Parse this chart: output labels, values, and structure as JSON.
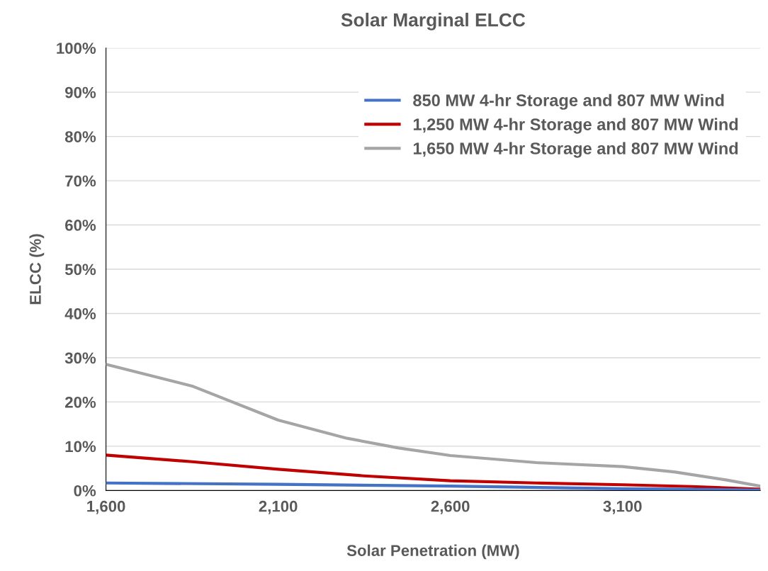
{
  "chart_data": {
    "type": "line",
    "title": "Solar Marginal ELCC",
    "xlabel": "Solar Penetration (MW)",
    "ylabel": "ELCC (%)",
    "xlim": [
      1600,
      3500
    ],
    "xticks": [
      {
        "value": 1600,
        "label": "1,600"
      },
      {
        "value": 2100,
        "label": "2,100"
      },
      {
        "value": 2600,
        "label": "2,600"
      },
      {
        "value": 3100,
        "label": "3,100"
      }
    ],
    "ylim": [
      0,
      100
    ],
    "yticks": [
      {
        "value": 0,
        "label": "0%"
      },
      {
        "value": 10,
        "label": "10%"
      },
      {
        "value": 20,
        "label": "20%"
      },
      {
        "value": 30,
        "label": "30%"
      },
      {
        "value": 40,
        "label": "40%"
      },
      {
        "value": 50,
        "label": "50%"
      },
      {
        "value": 60,
        "label": "60%"
      },
      {
        "value": 70,
        "label": "70%"
      },
      {
        "value": 80,
        "label": "80%"
      },
      {
        "value": 90,
        "label": "90%"
      },
      {
        "value": 100,
        "label": "100%"
      }
    ],
    "grid": "y",
    "legend": "top right",
    "marker": "none",
    "line_style": "solid",
    "series": [
      {
        "name": "850 MW 4-hr Storage and 807 MW Wind",
        "color": "#4472c4",
        "x": [
          1600,
          2100,
          2600,
          3100,
          3500
        ],
        "values": [
          1.7,
          1.4,
          1.0,
          0.4,
          0.1
        ]
      },
      {
        "name": "1,250 MW 4-hr Storage and 807 MW Wind",
        "color": "#c00000",
        "x": [
          1600,
          1850,
          2100,
          2350,
          2600,
          2850,
          3100,
          3300,
          3500
        ],
        "values": [
          8.0,
          6.5,
          4.8,
          3.3,
          2.2,
          1.7,
          1.3,
          0.9,
          0.3
        ]
      },
      {
        "name": "1,650 MW 4-hr Storage and 807 MW Wind",
        "color": "#a5a5a5",
        "x": [
          1600,
          1850,
          2100,
          2300,
          2450,
          2600,
          2850,
          3100,
          3250,
          3400,
          3500
        ],
        "values": [
          28.5,
          23.6,
          15.9,
          11.8,
          9.6,
          7.9,
          6.3,
          5.4,
          4.2,
          2.4,
          1.0
        ]
      }
    ]
  }
}
